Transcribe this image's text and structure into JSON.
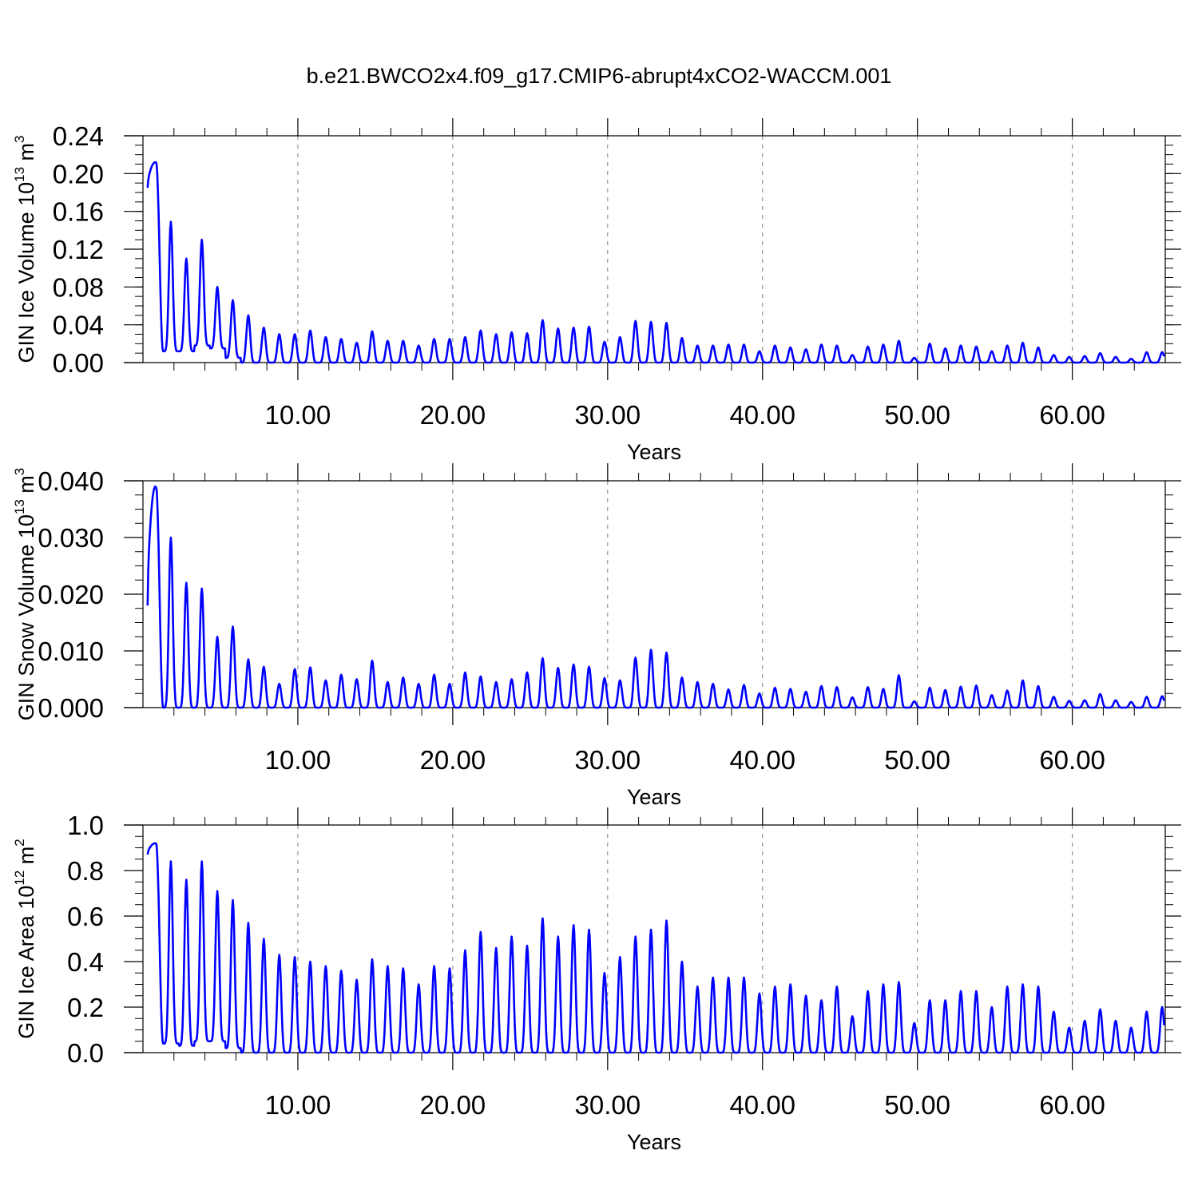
{
  "title": "b.e21.BWCO2x4.f09_g17.CMIP6-abrupt4xCO2-WACCM.001",
  "colors": {
    "line": "#0000ff",
    "axis": "#000000",
    "grid": "#808080"
  },
  "chart_data": [
    {
      "type": "line",
      "ylabel": {
        "main": "GIN Ice Volume 10",
        "sup": "13",
        "unit": " m",
        "unit_sup": "3"
      },
      "xlabel": "Years",
      "xlim": [
        0,
        66
      ],
      "ylim": [
        0,
        0.24
      ],
      "grid": "vertical dashed at labeled x ticks",
      "x_ticks": [
        10,
        20,
        30,
        40,
        50,
        60
      ],
      "x_tick_labels": [
        "10.00",
        "20.00",
        "30.00",
        "40.00",
        "50.00",
        "60.00"
      ],
      "y_ticks": [
        0,
        0.04,
        0.08,
        0.12,
        0.16,
        0.2,
        0.24
      ],
      "y_tick_labels": [
        "0.00",
        "0.04",
        "0.08",
        "0.12",
        "0.16",
        "0.20",
        "0.24"
      ],
      "seasonal_min": [
        0.185,
        0.012,
        0.012,
        0.018,
        0.015,
        0.005,
        0,
        0,
        0,
        0,
        0,
        0,
        0,
        0,
        0,
        0,
        0,
        0,
        0,
        0,
        0,
        0,
        0,
        0,
        0,
        0,
        0,
        0,
        0,
        0,
        0,
        0,
        0,
        0,
        0,
        0,
        0,
        0,
        0,
        0,
        0,
        0,
        0,
        0,
        0,
        0,
        0,
        0,
        0,
        0,
        0,
        0,
        0,
        0,
        0,
        0,
        0,
        0,
        0,
        0,
        0,
        0,
        0,
        0,
        0,
        0
      ],
      "annual_peaks": [
        0.212,
        0.149,
        0.11,
        0.13,
        0.08,
        0.066,
        0.05,
        0.037,
        0.03,
        0.03,
        0.034,
        0.027,
        0.025,
        0.021,
        0.033,
        0.023,
        0.023,
        0.018,
        0.025,
        0.025,
        0.027,
        0.034,
        0.03,
        0.032,
        0.031,
        0.045,
        0.036,
        0.037,
        0.038,
        0.022,
        0.027,
        0.044,
        0.043,
        0.042,
        0.026,
        0.018,
        0.018,
        0.019,
        0.019,
        0.012,
        0.018,
        0.016,
        0.014,
        0.019,
        0.018,
        0.008,
        0.017,
        0.019,
        0.023,
        0.005,
        0.02,
        0.015,
        0.018,
        0.017,
        0.012,
        0.018,
        0.021,
        0.016,
        0.008,
        0.006,
        0.007,
        0.01,
        0.006,
        0.004,
        0.011,
        0.011
      ]
    },
    {
      "type": "line",
      "ylabel": {
        "main": "GIN Snow Volume 10",
        "sup": "13",
        "unit": " m",
        "unit_sup": "3"
      },
      "xlabel": "Years",
      "xlim": [
        0,
        66
      ],
      "ylim": [
        0,
        0.04
      ],
      "grid": "vertical dashed at labeled x ticks",
      "x_ticks": [
        10,
        20,
        30,
        40,
        50,
        60
      ],
      "x_tick_labels": [
        "10.00",
        "20.00",
        "30.00",
        "40.00",
        "50.00",
        "60.00"
      ],
      "y_ticks": [
        0,
        0.01,
        0.02,
        0.03,
        0.04
      ],
      "y_tick_labels": [
        "0.000",
        "0.010",
        "0.020",
        "0.030",
        "0.040"
      ],
      "seasonal_min": [
        0.018,
        0,
        0,
        0,
        0,
        0,
        0,
        0,
        0,
        0,
        0,
        0,
        0,
        0,
        0,
        0,
        0,
        0,
        0,
        0,
        0,
        0,
        0,
        0,
        0,
        0,
        0,
        0,
        0,
        0,
        0,
        0,
        0,
        0,
        0,
        0,
        0,
        0,
        0,
        0,
        0,
        0,
        0,
        0,
        0,
        0,
        0,
        0,
        0,
        0,
        0,
        0,
        0,
        0,
        0,
        0,
        0,
        0,
        0,
        0,
        0,
        0,
        0,
        0,
        0,
        0
      ],
      "annual_peaks": [
        0.039,
        0.03,
        0.022,
        0.021,
        0.0125,
        0.0143,
        0.0085,
        0.0072,
        0.0042,
        0.0068,
        0.0071,
        0.0048,
        0.0058,
        0.005,
        0.0083,
        0.0045,
        0.0053,
        0.0042,
        0.0058,
        0.0042,
        0.0062,
        0.0055,
        0.0045,
        0.005,
        0.0062,
        0.0087,
        0.007,
        0.0076,
        0.0072,
        0.0052,
        0.0048,
        0.0088,
        0.0102,
        0.0097,
        0.0053,
        0.0045,
        0.0042,
        0.0032,
        0.004,
        0.0025,
        0.0035,
        0.0033,
        0.0028,
        0.0038,
        0.0036,
        0.0018,
        0.0036,
        0.0033,
        0.0057,
        0.0011,
        0.0035,
        0.0031,
        0.0037,
        0.0039,
        0.0022,
        0.003,
        0.0048,
        0.0038,
        0.0019,
        0.0012,
        0.0013,
        0.0024,
        0.0013,
        0.001,
        0.0019,
        0.002
      ]
    },
    {
      "type": "line",
      "ylabel": {
        "main": "GIN Ice Area 10",
        "sup": "12",
        "unit": " m",
        "unit_sup": "2"
      },
      "xlabel": "Years",
      "xlim": [
        0,
        66
      ],
      "ylim": [
        0,
        1.0
      ],
      "grid": "vertical dashed at labeled x ticks",
      "x_ticks": [
        10,
        20,
        30,
        40,
        50,
        60
      ],
      "x_tick_labels": [
        "10.00",
        "20.00",
        "30.00",
        "40.00",
        "50.00",
        "60.00"
      ],
      "y_ticks": [
        0,
        0.2,
        0.4,
        0.6,
        0.8,
        1.0
      ],
      "y_tick_labels": [
        "0.0",
        "0.2",
        "0.4",
        "0.6",
        "0.8",
        "1.0"
      ],
      "seasonal_min": [
        0.87,
        0.04,
        0.03,
        0.05,
        0.05,
        0.02,
        0,
        0,
        0,
        0,
        0,
        0,
        0,
        0,
        0,
        0,
        0,
        0,
        0,
        0,
        0,
        0,
        0,
        0,
        0,
        0,
        0,
        0,
        0,
        0,
        0,
        0,
        0,
        0,
        0,
        0,
        0,
        0,
        0,
        0,
        0,
        0,
        0,
        0,
        0,
        0,
        0,
        0,
        0,
        0,
        0,
        0,
        0,
        0,
        0,
        0,
        0,
        0,
        0,
        0,
        0,
        0,
        0,
        0,
        0,
        0
      ],
      "annual_peaks": [
        0.92,
        0.84,
        0.76,
        0.84,
        0.71,
        0.67,
        0.57,
        0.5,
        0.43,
        0.42,
        0.4,
        0.38,
        0.36,
        0.32,
        0.41,
        0.38,
        0.37,
        0.3,
        0.38,
        0.37,
        0.45,
        0.53,
        0.46,
        0.51,
        0.47,
        0.59,
        0.51,
        0.56,
        0.54,
        0.35,
        0.42,
        0.51,
        0.54,
        0.58,
        0.4,
        0.29,
        0.33,
        0.33,
        0.33,
        0.26,
        0.29,
        0.3,
        0.25,
        0.23,
        0.29,
        0.16,
        0.27,
        0.3,
        0.31,
        0.13,
        0.23,
        0.23,
        0.27,
        0.27,
        0.2,
        0.29,
        0.3,
        0.29,
        0.18,
        0.11,
        0.14,
        0.19,
        0.14,
        0.11,
        0.18,
        0.2
      ]
    }
  ]
}
